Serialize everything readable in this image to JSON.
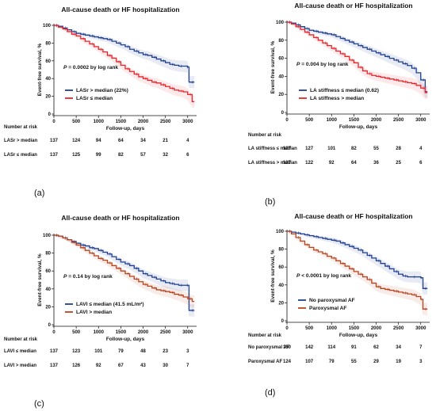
{
  "chart_data": [
    {
      "type": "line",
      "panel_label": "(a)",
      "title": "All-cause death or HF hospitalization",
      "xlabel": "Follow-up, days",
      "ylabel": "Event-free survival, %",
      "xticks": [
        0,
        500,
        1000,
        1500,
        2000,
        2500,
        3000
      ],
      "yticks": [
        0,
        20,
        40,
        60,
        80,
        100
      ],
      "xlim": [
        0,
        3200
      ],
      "ylim": [
        0,
        100
      ],
      "p_label": "P",
      "p_value": " = 0.0002 by log rank",
      "risk_header": "Number at risk",
      "series": [
        {
          "name": "LASr > median (22%)",
          "color": "#1f3f8f",
          "x": [
            0,
            100,
            200,
            300,
            400,
            500,
            600,
            700,
            800,
            900,
            1000,
            1100,
            1200,
            1300,
            1400,
            1500,
            1600,
            1700,
            1800,
            1900,
            2000,
            2100,
            2200,
            2300,
            2400,
            2500,
            2600,
            2700,
            2800,
            2900,
            3000,
            3030,
            3100,
            3150
          ],
          "y": [
            100,
            99,
            97,
            95,
            93,
            91,
            90,
            89,
            88,
            87,
            86,
            85,
            84,
            82,
            80,
            78,
            76,
            73,
            71,
            69,
            67,
            66,
            64,
            62,
            60,
            58,
            56,
            55,
            54,
            54,
            53,
            36,
            36,
            36
          ]
        },
        {
          "name": "LASr ≤ median",
          "color": "#e8242a",
          "x": [
            0,
            100,
            200,
            300,
            400,
            500,
            600,
            700,
            800,
            900,
            1000,
            1100,
            1200,
            1300,
            1400,
            1500,
            1600,
            1700,
            1800,
            1900,
            2000,
            2100,
            2200,
            2300,
            2400,
            2500,
            2600,
            2700,
            2800,
            2900,
            3000,
            3100,
            3150
          ],
          "y": [
            100,
            98,
            96,
            93,
            90,
            88,
            85,
            82,
            79,
            76,
            73,
            70,
            66,
            63,
            59,
            55,
            51,
            48,
            45,
            42,
            40,
            38,
            36,
            35,
            33,
            31,
            29,
            27,
            26,
            25,
            22,
            14,
            14
          ]
        }
      ],
      "risk_table": [
        {
          "label": "LASr > median",
          "values": [
            137,
            124,
            94,
            64,
            34,
            21,
            4
          ]
        },
        {
          "label": "LASr ≤ median",
          "values": [
            137,
            125,
            99,
            82,
            57,
            32,
            6
          ]
        }
      ]
    },
    {
      "type": "line",
      "panel_label": "(b)",
      "title": "All-cause death or HF hospitalization",
      "xlabel": "Follow-up, days",
      "ylabel": "Event-free survival, %",
      "xticks": [
        0,
        500,
        1000,
        1500,
        2000,
        2500,
        3000
      ],
      "yticks": [
        0,
        20,
        40,
        60,
        80,
        100
      ],
      "xlim": [
        0,
        3200
      ],
      "ylim": [
        0,
        100
      ],
      "p_label": "P",
      "p_value": " = 0.004 by log rank",
      "risk_header": "Number at risk",
      "series": [
        {
          "name": "LA stiffness ≤ median (0.62)",
          "color": "#1f3f8f",
          "x": [
            0,
            100,
            200,
            300,
            400,
            500,
            600,
            700,
            800,
            900,
            1000,
            1100,
            1200,
            1300,
            1400,
            1500,
            1600,
            1700,
            1800,
            1900,
            2000,
            2100,
            2200,
            2300,
            2400,
            2500,
            2600,
            2700,
            2800,
            2900,
            3000,
            3100,
            3150
          ],
          "y": [
            100,
            99,
            97,
            95,
            93,
            91,
            90,
            89,
            88,
            87,
            86,
            84,
            82,
            80,
            78,
            76,
            74,
            72,
            70,
            68,
            66,
            64,
            62,
            60,
            58,
            56,
            54,
            52,
            49,
            44,
            36,
            23,
            23
          ]
        },
        {
          "name": "LA stiffness > median",
          "color": "#e8242a",
          "x": [
            0,
            100,
            200,
            300,
            400,
            500,
            600,
            700,
            800,
            900,
            1000,
            1100,
            1200,
            1300,
            1400,
            1500,
            1600,
            1700,
            1800,
            1900,
            2000,
            2100,
            2200,
            2300,
            2400,
            2500,
            2600,
            2700,
            2800,
            2900,
            3000,
            3100,
            3150
          ],
          "y": [
            100,
            98,
            95,
            92,
            89,
            86,
            83,
            80,
            77,
            74,
            71,
            68,
            65,
            62,
            58,
            55,
            50,
            46,
            43,
            41,
            40,
            39,
            38,
            37,
            36,
            35,
            34,
            33,
            32,
            30,
            27,
            22,
            22
          ]
        }
      ],
      "risk_table": [
        {
          "label": "LA stiffness ≤ median",
          "values": [
            137,
            127,
            101,
            82,
            55,
            28,
            4
          ]
        },
        {
          "label": "LA stiffness > median",
          "values": [
            137,
            122,
            92,
            64,
            36,
            25,
            6
          ]
        }
      ]
    },
    {
      "type": "line",
      "panel_label": "(c)",
      "title": "All-cause death or HF hospitalization",
      "xlabel": "Follow-up, days",
      "ylabel": "Event-free survival, %",
      "xticks": [
        0,
        500,
        1000,
        1500,
        2000,
        2500,
        3000
      ],
      "yticks": [
        0,
        20,
        40,
        60,
        80,
        100
      ],
      "xlim": [
        0,
        3200
      ],
      "ylim": [
        0,
        100
      ],
      "p_label": "P",
      "p_value": " = 0.14 by log rank",
      "risk_header": "Number at risk",
      "series": [
        {
          "name": "LAVI ≤ median (41.5 mL/m²)",
          "color": "#1f3f8f",
          "x": [
            0,
            100,
            200,
            300,
            400,
            500,
            600,
            700,
            800,
            900,
            1000,
            1100,
            1200,
            1300,
            1400,
            1500,
            1600,
            1700,
            1800,
            1900,
            2000,
            2100,
            2200,
            2300,
            2400,
            2500,
            2600,
            2700,
            2800,
            2900,
            3000,
            3030,
            3100,
            3150
          ],
          "y": [
            100,
            99,
            97,
            95,
            93,
            91,
            89,
            88,
            86,
            85,
            83,
            81,
            79,
            76,
            73,
            70,
            68,
            66,
            63,
            60,
            57,
            55,
            53,
            51,
            49,
            47,
            46,
            45,
            44,
            44,
            44,
            16,
            16,
            16
          ]
        },
        {
          "name": "LAVI > median",
          "color": "#b8431e",
          "x": [
            0,
            100,
            200,
            300,
            400,
            500,
            600,
            700,
            800,
            900,
            1000,
            1100,
            1200,
            1300,
            1400,
            1500,
            1600,
            1700,
            1800,
            1900,
            2000,
            2100,
            2200,
            2300,
            2400,
            2500,
            2600,
            2700,
            2800,
            2900,
            3000,
            3100,
            3150
          ],
          "y": [
            100,
            99,
            97,
            95,
            92,
            89,
            86,
            83,
            80,
            77,
            74,
            72,
            69,
            66,
            63,
            60,
            57,
            54,
            51,
            48,
            45,
            43,
            41,
            39,
            38,
            37,
            36,
            34,
            33,
            31,
            29,
            26,
            26
          ]
        }
      ],
      "risk_table": [
        {
          "label": "LAVI ≤ median",
          "values": [
            137,
            123,
            101,
            79,
            48,
            23,
            3
          ]
        },
        {
          "label": "LAVI > median",
          "values": [
            137,
            126,
            92,
            67,
            43,
            30,
            7
          ]
        }
      ]
    },
    {
      "type": "line",
      "panel_label": "(d)",
      "title": "All-cause death or HF hospitalization",
      "xlabel": "Follow-up, days",
      "ylabel": "Event-free survival, %",
      "xticks": [
        0,
        500,
        1000,
        1500,
        2000,
        2500,
        3000
      ],
      "yticks": [
        0,
        20,
        40,
        60,
        80,
        100
      ],
      "xlim": [
        0,
        3200
      ],
      "ylim": [
        0,
        100
      ],
      "p_label": "P",
      "p_value": " < 0.0001 by log rank",
      "risk_header": "Number at risk",
      "series": [
        {
          "name": "No paroxysmal AF",
          "color": "#1f3f8f",
          "x": [
            0,
            100,
            200,
            300,
            400,
            500,
            600,
            700,
            800,
            900,
            1000,
            1100,
            1200,
            1300,
            1400,
            1500,
            1600,
            1700,
            1800,
            1900,
            2000,
            2100,
            2200,
            2300,
            2400,
            2500,
            2600,
            2700,
            2800,
            2900,
            3000,
            3050,
            3100,
            3150
          ],
          "y": [
            100,
            99,
            98,
            97,
            96,
            95,
            94,
            93,
            92,
            91,
            90,
            89,
            87,
            85,
            83,
            81,
            79,
            76,
            73,
            70,
            67,
            64,
            61,
            58,
            55,
            52,
            50,
            49,
            49,
            49,
            48,
            36,
            36,
            36
          ]
        },
        {
          "name": "Paroxysmal AF",
          "color": "#b8431e",
          "x": [
            0,
            100,
            200,
            300,
            400,
            500,
            600,
            700,
            800,
            900,
            1000,
            1100,
            1200,
            1300,
            1400,
            1500,
            1600,
            1700,
            1800,
            1900,
            2000,
            2100,
            2200,
            2300,
            2400,
            2500,
            2600,
            2700,
            2800,
            2900,
            3000,
            3050,
            3100,
            3150
          ],
          "y": [
            100,
            97,
            93,
            89,
            85,
            82,
            79,
            77,
            75,
            72,
            70,
            67,
            64,
            61,
            58,
            55,
            52,
            49,
            46,
            42,
            38,
            36,
            35,
            34,
            33,
            32,
            31,
            30,
            29,
            27,
            24,
            13,
            13,
            13
          ]
        }
      ],
      "risk_table": [
        {
          "label": "No paroxysmal AF",
          "values": [
            150,
            142,
            114,
            91,
            62,
            34,
            7
          ]
        },
        {
          "label": "Paroxysmal AF",
          "values": [
            124,
            107,
            79,
            55,
            29,
            19,
            3
          ]
        }
      ]
    }
  ]
}
